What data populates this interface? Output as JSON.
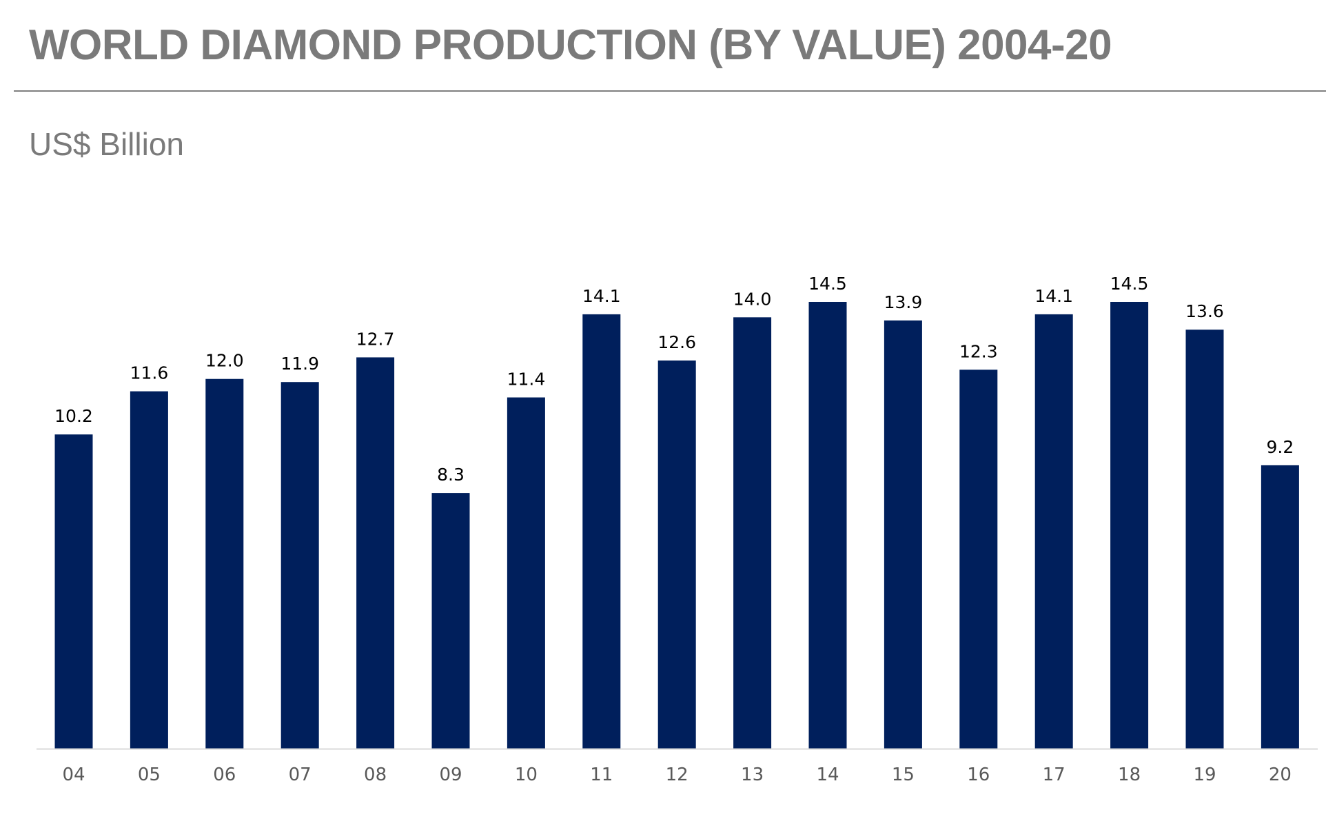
{
  "header": {
    "title": "WORLD DIAMOND PRODUCTION (BY VALUE) 2004-20",
    "subtitle": "US$ Billion"
  },
  "colors": {
    "bar": "#001f5c",
    "title": "#7a7a7a",
    "axis": "#d9d9d9",
    "tick_label": "#595959",
    "data_label": "#000000"
  },
  "chart_data": {
    "type": "bar",
    "title": "WORLD DIAMOND PRODUCTION (BY VALUE) 2004-20",
    "ylabel": "US$ Billion",
    "xlabel": "",
    "categories": [
      "04",
      "05",
      "06",
      "07",
      "08",
      "09",
      "10",
      "11",
      "12",
      "13",
      "14",
      "15",
      "16",
      "17",
      "18",
      "19",
      "20"
    ],
    "values": [
      10.2,
      11.6,
      12.0,
      11.9,
      12.7,
      8.3,
      11.4,
      14.1,
      12.6,
      14.0,
      14.5,
      13.9,
      12.3,
      14.1,
      14.5,
      13.6,
      9.2
    ],
    "value_labels": [
      "10.2",
      "11.6",
      "12.0",
      "11.9",
      "12.7",
      "8.3",
      "11.4",
      "14.1",
      "12.6",
      "14.0",
      "14.5",
      "13.9",
      "12.3",
      "14.1",
      "14.5",
      "13.6",
      "9.2"
    ],
    "ylim": [
      0,
      14.5
    ],
    "grid": false,
    "legend": "none",
    "data_labels": "above bars"
  }
}
